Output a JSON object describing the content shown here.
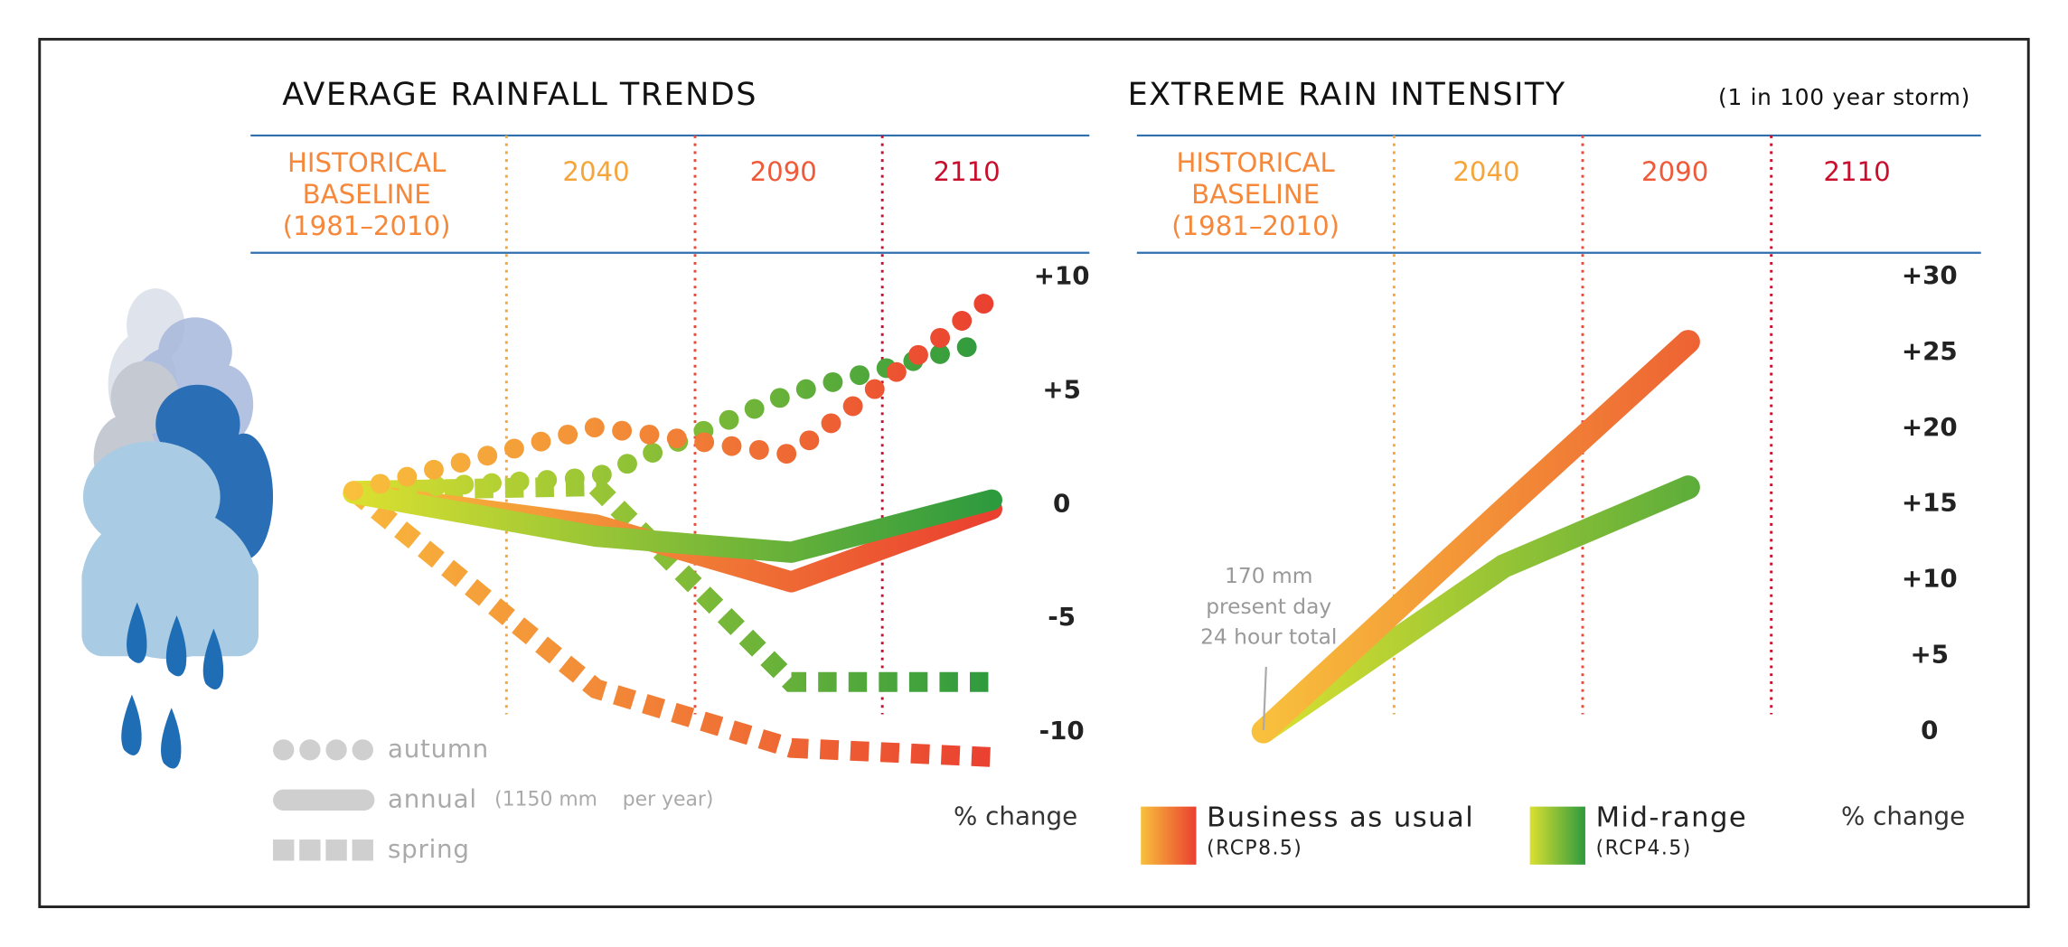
{
  "chart_data": [
    {
      "type": "line",
      "title": "AVERAGE RAINFALL TRENDS",
      "categories": [
        "HISTORICAL BASELINE (1981–2010)",
        "2040",
        "2090",
        "2110"
      ],
      "category_colors": [
        "#f5883a",
        "#f5a53a",
        "#ee5a3a",
        "#c8102e"
      ],
      "y_label": "% change",
      "ylim": [
        -12,
        11
      ],
      "yticks": [
        {
          "value": 10,
          "label": "+10"
        },
        {
          "value": 5,
          "label": "+5"
        },
        0,
        -5,
        -10
      ],
      "legend": [
        {
          "marker": "dots",
          "label": "autumn"
        },
        {
          "marker": "line",
          "label": "annual",
          "note": "(1150 mm    per year)"
        },
        {
          "marker": "squares",
          "label": "spring"
        }
      ],
      "series": [
        {
          "marker": "squares",
          "gradient": [
            "#f8b83c",
            "#ea4030"
          ],
          "values": [
            0.6,
            -8.1,
            -10.7,
            -11.1
          ]
        },
        {
          "marker": "squares",
          "gradient": [
            "#dbe030",
            "#2e9a3e"
          ],
          "values": [
            0.6,
            0.8,
            -7.8,
            -7.8
          ]
        },
        {
          "marker": "line",
          "gradient": [
            "#f8c03c",
            "#ea4030"
          ],
          "values": [
            0.5,
            -0.9,
            -3.4,
            -0.2
          ]
        },
        {
          "marker": "line",
          "gradient": [
            "#dbe030",
            "#2e9a3e"
          ],
          "values": [
            0.5,
            -1.4,
            -2.1,
            0.2
          ]
        },
        {
          "marker": "dots",
          "gradient": [
            "#dbe030",
            "#2e9a3e"
          ],
          "values": [
            0.6,
            1.2,
            4.9,
            7.2
          ]
        },
        {
          "marker": "dots",
          "gradient": [
            "#f8c03c",
            "#ea4030"
          ],
          "values": [
            0.6,
            3.4,
            2.2,
            9.1
          ]
        }
      ]
    },
    {
      "type": "line",
      "title": "EXTREME RAIN INTENSITY",
      "subtitle": "(1 in 100 year storm)",
      "categories": [
        "HISTORICAL BASELINE (1981–2010)",
        "2040",
        "2090",
        "2110"
      ],
      "category_colors": [
        "#f5883a",
        "#f5a53a",
        "#ee5a3a",
        "#c8102e"
      ],
      "y_label": "% change",
      "ylim": [
        0,
        30
      ],
      "yticks": [
        {
          "value": 30,
          "label": "+30"
        },
        {
          "value": 25,
          "label": "+25"
        },
        {
          "value": 20,
          "label": "+20"
        },
        {
          "value": 15,
          "label": "+15"
        },
        {
          "value": 10,
          "label": "+10"
        },
        {
          "value": 5,
          "label": "+5"
        },
        0
      ],
      "annotation": [
        "170 mm",
        "present day",
        "24 hour total"
      ],
      "series": [
        {
          "name": "Mid-range",
          "note": "(RCP4.5)",
          "marker": "line",
          "gradient": [
            "#dbe030",
            "#2e9a3e"
          ],
          "values": [
            0,
            10.9,
            16.1,
            null
          ]
        },
        {
          "name": "Business as usual",
          "note": "(RCP8.5)",
          "marker": "line",
          "gradient": [
            "#f8c03c",
            "#ea4030"
          ],
          "values": [
            0,
            14.6,
            25.7,
            null
          ]
        }
      ]
    }
  ]
}
